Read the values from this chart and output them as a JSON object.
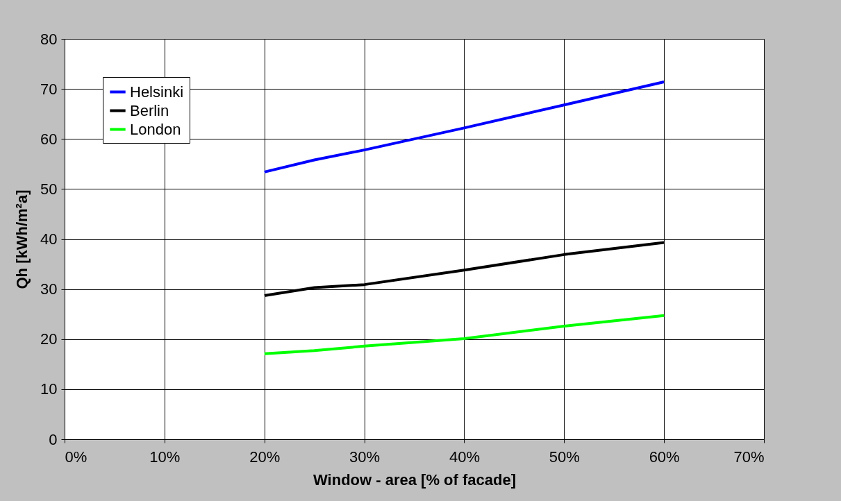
{
  "chart_data": {
    "type": "line",
    "xlabel": "Window - area [% of facade]",
    "ylabel": "Qh [kWh/m²a]",
    "x": [
      20,
      25,
      30,
      40,
      50,
      60
    ],
    "series": [
      {
        "name": "Helsinki",
        "color": "#0000ff",
        "values": [
          53.4,
          55.8,
          57.8,
          62.2,
          66.8,
          71.4
        ]
      },
      {
        "name": "Berlin",
        "color": "#000000",
        "values": [
          28.7,
          30.3,
          30.9,
          33.8,
          36.9,
          39.3
        ]
      },
      {
        "name": "London",
        "color": "#00ff00",
        "values": [
          17.1,
          17.7,
          18.6,
          20.1,
          22.6,
          24.7
        ]
      }
    ],
    "xlim": [
      0,
      70
    ],
    "xticks": [
      {
        "value": 0,
        "label": "0%"
      },
      {
        "value": 10,
        "label": "10%"
      },
      {
        "value": 20,
        "label": "20%"
      },
      {
        "value": 30,
        "label": "30%"
      },
      {
        "value": 40,
        "label": "40%"
      },
      {
        "value": 50,
        "label": "50%"
      },
      {
        "value": 60,
        "label": "60%"
      },
      {
        "value": 70,
        "label": "70%"
      }
    ],
    "ylim": [
      0,
      80
    ],
    "yticks": [
      0,
      10,
      20,
      30,
      40,
      50,
      60,
      70,
      80
    ],
    "grid": true,
    "legend": "top left",
    "marker": "none",
    "line_style": "solid"
  }
}
